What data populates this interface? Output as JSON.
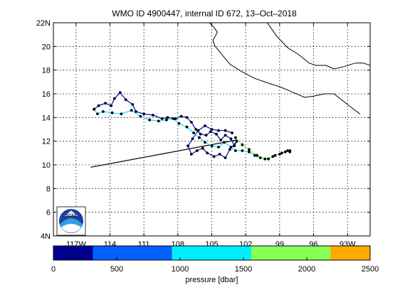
{
  "title": "WMO ID 4900447, internal ID 672, 13–Oct–2018",
  "chart_data": {
    "type": "map-trajectory",
    "title": "WMO ID 4900447, internal ID 672, 13–Oct–2018",
    "xlim": [
      -119,
      -91
    ],
    "ylim": [
      4,
      22
    ],
    "grid": true,
    "x_ticks": [
      {
        "value": -117,
        "label": "117W"
      },
      {
        "value": -114,
        "label": "114"
      },
      {
        "value": -111,
        "label": "111"
      },
      {
        "value": -108,
        "label": "108"
      },
      {
        "value": -105,
        "label": "105"
      },
      {
        "value": -102,
        "label": "102"
      },
      {
        "value": -99,
        "label": "99"
      },
      {
        "value": -96,
        "label": "96"
      },
      {
        "value": -93,
        "label": "93W"
      }
    ],
    "y_ticks": [
      {
        "value": 4,
        "label": "4N"
      },
      {
        "value": 6,
        "label": "6"
      },
      {
        "value": 8,
        "label": "8"
      },
      {
        "value": 10,
        "label": "10"
      },
      {
        "value": 12,
        "label": "12"
      },
      {
        "value": 14,
        "label": "14"
      },
      {
        "value": 16,
        "label": "16"
      },
      {
        "value": 18,
        "label": "18"
      },
      {
        "value": 20,
        "label": "20"
      },
      {
        "value": 22,
        "label": "22N"
      }
    ],
    "coastline": [
      [
        [
          -105.2,
          22
        ],
        [
          -104.8,
          21.6
        ],
        [
          -104.5,
          21.2
        ],
        [
          -104.9,
          20.5
        ],
        [
          -104.7,
          20.0
        ],
        [
          -104.0,
          19.2
        ],
        [
          -103.4,
          18.5
        ],
        [
          -102.4,
          17.9
        ],
        [
          -101.2,
          17.3
        ],
        [
          -100.0,
          16.9
        ],
        [
          -99.0,
          16.6
        ],
        [
          -98.0,
          16.2
        ],
        [
          -96.8,
          15.7
        ],
        [
          -96.0,
          15.8
        ],
        [
          -95.0,
          16.0
        ],
        [
          -94.2,
          16.0
        ],
        [
          -93.4,
          15.4
        ],
        [
          -92.6,
          14.8
        ],
        [
          -91.9,
          14.3
        ]
      ],
      [
        [
          -100.1,
          22
        ],
        [
          -99.2,
          20.8
        ],
        [
          -98.3,
          19.9
        ],
        [
          -97.3,
          19.3
        ],
        [
          -96.4,
          18.6
        ],
        [
          -95.8,
          18.4
        ],
        [
          -94.9,
          18.4
        ],
        [
          -94.2,
          18.1
        ],
        [
          -93.3,
          18.3
        ],
        [
          -92.3,
          18.6
        ],
        [
          -91.6,
          18.6
        ],
        [
          -91.0,
          18.4
        ]
      ]
    ],
    "path_segments": [
      {
        "color": "#000000",
        "points": [
          [
            -115.7,
            9.8
          ],
          [
            -102.8,
            12.1
          ]
        ]
      },
      {
        "color": "#0000cc",
        "points": [
          [
            -115.4,
            14.7
          ],
          [
            -115.0,
            15.0
          ],
          [
            -114.4,
            15.2
          ],
          [
            -113.9,
            15.0
          ],
          [
            -113.6,
            15.6
          ],
          [
            -113.1,
            16.1
          ],
          [
            -112.6,
            15.5
          ],
          [
            -112.0,
            15.1
          ],
          [
            -111.7,
            14.5
          ],
          [
            -111.0,
            14.3
          ],
          [
            -110.2,
            14.2
          ],
          [
            -109.4,
            13.9
          ],
          [
            -108.9,
            14.0
          ],
          [
            -108.2,
            13.9
          ],
          [
            -107.7,
            14.1
          ],
          [
            -107.2,
            14.0
          ],
          [
            -106.8,
            13.6
          ],
          [
            -106.4,
            13.0
          ],
          [
            -106.0,
            12.6
          ],
          [
            -105.5,
            12.5
          ],
          [
            -105.1,
            12.8
          ],
          [
            -104.6,
            12.6
          ],
          [
            -104.2,
            12.1
          ],
          [
            -103.8,
            12.5
          ],
          [
            -103.3,
            12.2
          ],
          [
            -103.0,
            11.6
          ],
          [
            -102.8,
            12.0
          ],
          [
            -103.4,
            11.3
          ],
          [
            -103.8,
            10.6
          ],
          [
            -104.3,
            10.9
          ],
          [
            -104.8,
            10.7
          ],
          [
            -105.4,
            11.0
          ],
          [
            -105.8,
            11.4
          ],
          [
            -106.3,
            11.2
          ],
          [
            -106.8,
            10.9
          ],
          [
            -107.1,
            11.6
          ],
          [
            -106.7,
            12.2
          ],
          [
            -106.2,
            12.9
          ],
          [
            -105.6,
            13.3
          ],
          [
            -105.0,
            13.0
          ],
          [
            -104.4,
            12.9
          ],
          [
            -103.8,
            12.9
          ],
          [
            -103.2,
            12.7
          ]
        ]
      },
      {
        "color": "#00e5ff",
        "points": [
          [
            -115.4,
            14.7
          ],
          [
            -115.1,
            14.3
          ],
          [
            -114.6,
            14.5
          ],
          [
            -113.8,
            14.4
          ],
          [
            -113.0,
            14.3
          ],
          [
            -112.1,
            14.6
          ],
          [
            -111.3,
            14.1
          ],
          [
            -110.5,
            13.8
          ],
          [
            -109.7,
            13.7
          ],
          [
            -109.0,
            13.8
          ],
          [
            -108.4,
            13.9
          ],
          [
            -107.9,
            13.5
          ],
          [
            -107.2,
            13.2
          ],
          [
            -106.6,
            12.7
          ],
          [
            -106.1,
            12.3
          ],
          [
            -105.6,
            11.9
          ],
          [
            -105.0,
            11.6
          ],
          [
            -104.4,
            11.5
          ],
          [
            -103.9,
            11.9
          ],
          [
            -103.3,
            11.5
          ],
          [
            -102.9,
            11.2
          ],
          [
            -102.3,
            11.2
          ],
          [
            -101.7,
            11.1
          ],
          [
            -101.2,
            10.8
          ],
          [
            -100.7,
            10.6
          ],
          [
            -100.0,
            10.5
          ],
          [
            -99.4,
            10.8
          ],
          [
            -98.8,
            11.0
          ],
          [
            -98.3,
            11.2
          ],
          [
            -98.1,
            11.1
          ]
        ]
      },
      {
        "color": "#88ff44",
        "points": [
          [
            -102.9,
            12.3
          ],
          [
            -102.3,
            11.7
          ],
          [
            -101.7,
            11.3
          ],
          [
            -101.0,
            10.8
          ],
          [
            -100.3,
            10.5
          ],
          [
            -99.6,
            10.7
          ],
          [
            -99.0,
            10.9
          ],
          [
            -98.5,
            11.1
          ],
          [
            -98.1,
            11.2
          ]
        ]
      }
    ],
    "colorbar": {
      "label": "pressure [dbar]",
      "range": [
        0,
        2500
      ],
      "ticks": [
        0,
        500,
        1000,
        1500,
        2000,
        2500
      ],
      "bands": [
        {
          "from": 0,
          "to": 312,
          "color": "#00008f"
        },
        {
          "from": 312,
          "to": 937,
          "color": "#0060ff"
        },
        {
          "from": 937,
          "to": 1562,
          "color": "#00eeff"
        },
        {
          "from": 1562,
          "to": 2187,
          "color": "#88ff55"
        },
        {
          "from": 2187,
          "to": 2500,
          "color": "#ffaa00"
        }
      ]
    },
    "logo_text": "NOAA"
  }
}
